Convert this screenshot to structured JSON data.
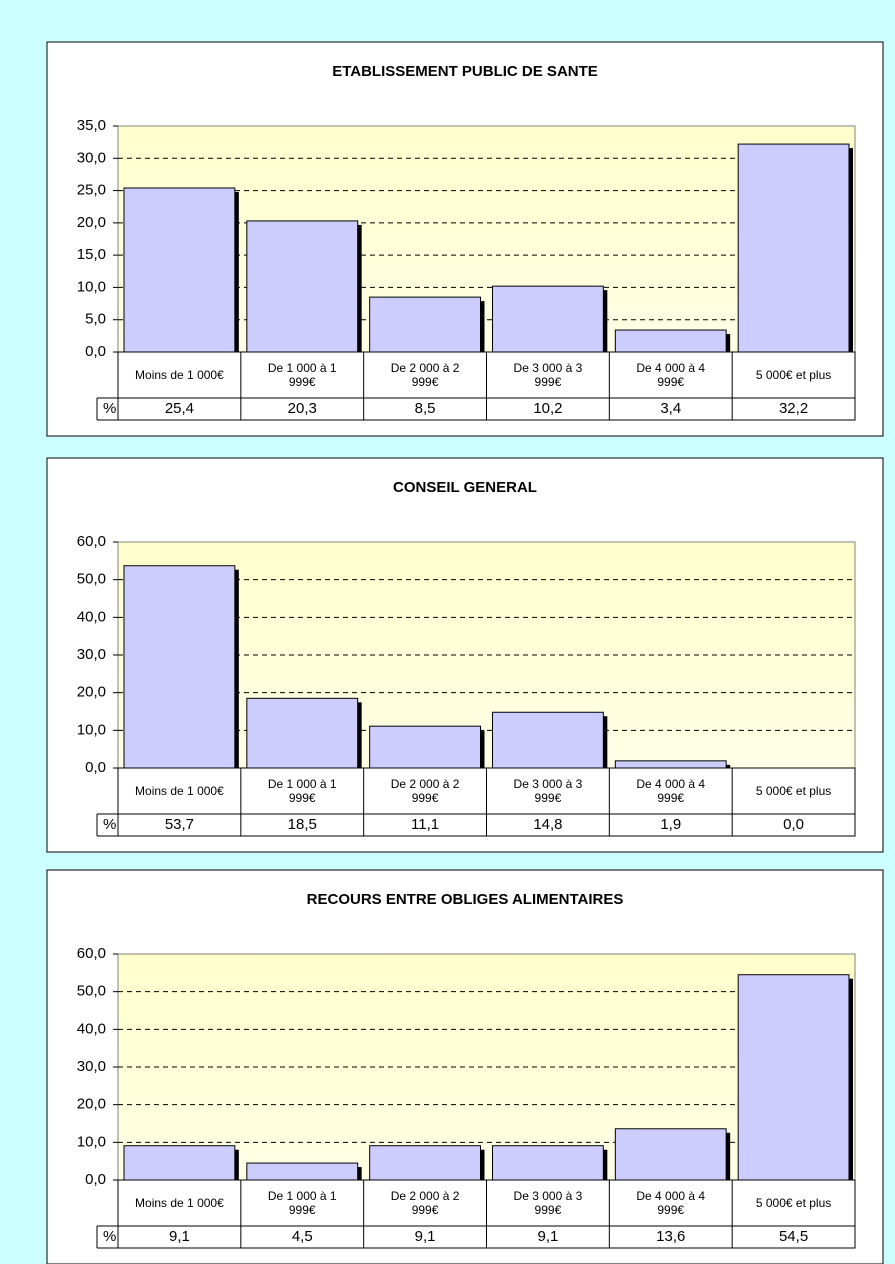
{
  "chart_data": [
    {
      "type": "bar",
      "title": "ETABLISSEMENT PUBLIC DE SANTE",
      "categories": [
        "Moins de 1 000€",
        "De 1 000 à 1 999€",
        "De 2 000 à 2 999€",
        "De 3 000 à 3 999€",
        "De 4 000 à 4 999€",
        "5 000€ et plus"
      ],
      "series": [
        {
          "name": "%",
          "color": "#ccccff",
          "values": [
            25.4,
            20.3,
            8.5,
            10.2,
            3.4,
            32.2
          ],
          "value_labels": [
            "25,4",
            "20,3",
            "8,5",
            "10,2",
            "3,4",
            "32,2"
          ]
        }
      ],
      "ylim": [
        0,
        35
      ],
      "yticks": [
        {
          "value": 0,
          "label": "0,0"
        },
        {
          "value": 5,
          "label": "5,0"
        },
        {
          "value": 10,
          "label": "10,0"
        },
        {
          "value": 15,
          "label": "15,0"
        },
        {
          "value": 20,
          "label": "20,0"
        },
        {
          "value": 25,
          "label": "25,0"
        },
        {
          "value": 30,
          "label": "30,0"
        },
        {
          "value": 35,
          "label": "35,0"
        }
      ],
      "grid": true
    },
    {
      "type": "bar",
      "title": "CONSEIL GENERAL",
      "categories": [
        "Moins de 1 000€",
        "De 1 000 à 1 999€",
        "De 2 000 à 2 999€",
        "De 3 000 à 3 999€",
        "De 4 000 à 4 999€",
        "5 000€ et plus"
      ],
      "series": [
        {
          "name": "%",
          "color": "#ccccff",
          "values": [
            53.7,
            18.5,
            11.1,
            14.8,
            1.9,
            0.0
          ],
          "value_labels": [
            "53,7",
            "18,5",
            "11,1",
            "14,8",
            "1,9",
            "0,0"
          ]
        }
      ],
      "ylim": [
        0,
        60
      ],
      "yticks": [
        {
          "value": 0,
          "label": "0,0"
        },
        {
          "value": 10,
          "label": "10,0"
        },
        {
          "value": 20,
          "label": "20,0"
        },
        {
          "value": 30,
          "label": "30,0"
        },
        {
          "value": 40,
          "label": "40,0"
        },
        {
          "value": 50,
          "label": "50,0"
        },
        {
          "value": 60,
          "label": "60,0"
        }
      ],
      "grid": true
    },
    {
      "type": "bar",
      "title": "RECOURS ENTRE OBLIGES ALIMENTAIRES",
      "categories": [
        "Moins de 1 000€",
        "De 1 000 à 1 999€",
        "De 2 000 à 2 999€",
        "De 3 000 à 3 999€",
        "De 4 000 à 4 999€",
        "5 000€ et plus"
      ],
      "series": [
        {
          "name": "%",
          "color": "#ccccff",
          "values": [
            9.1,
            4.5,
            9.1,
            9.1,
            13.6,
            54.5
          ],
          "value_labels": [
            "9,1",
            "4,5",
            "9,1",
            "9,1",
            "13,6",
            "54,5"
          ]
        }
      ],
      "ylim": [
        0,
        60
      ],
      "yticks": [
        {
          "value": 0,
          "label": "0,0"
        },
        {
          "value": 10,
          "label": "10,0"
        },
        {
          "value": 20,
          "label": "20,0"
        },
        {
          "value": 30,
          "label": "30,0"
        },
        {
          "value": 40,
          "label": "40,0"
        },
        {
          "value": 50,
          "label": "50,0"
        },
        {
          "value": 60,
          "label": "60,0"
        }
      ],
      "grid": true
    }
  ]
}
